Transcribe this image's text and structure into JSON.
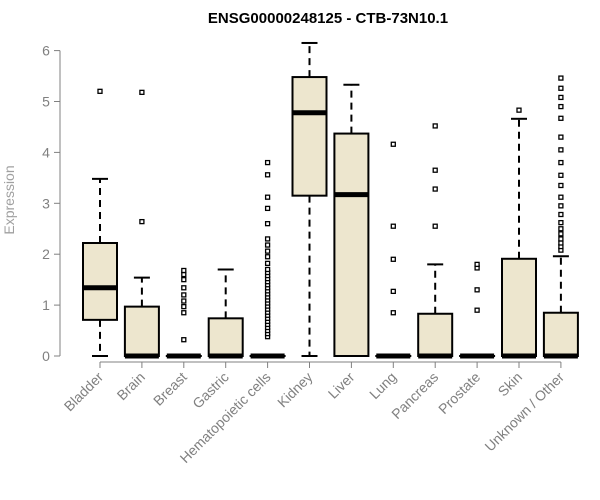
{
  "chart_data": {
    "type": "boxplot",
    "title": "ENSG00000248125 - CTB-73N10.1",
    "xlabel": "",
    "ylabel": "Expression",
    "ylim": [
      0,
      6.2
    ],
    "yticks": [
      0,
      1,
      2,
      3,
      4,
      5,
      6
    ],
    "colors": {
      "box_fill": "#ede6ce",
      "stroke": "#000000",
      "axis": "#808080"
    },
    "categories": [
      "Bladder",
      "Brain",
      "Breast",
      "Gastric",
      "Hematopoietic cells",
      "Kidney",
      "Liver",
      "Lung",
      "Pancreas",
      "Prostate",
      "Skin",
      "Unknown / Other"
    ],
    "boxes": [
      {
        "q1": 0.71,
        "median": 1.34,
        "q3": 2.22,
        "whisker_low": 0,
        "whisker_high": 3.48,
        "outliers": [
          5.2
        ]
      },
      {
        "q1": 0,
        "median": 0,
        "q3": 0.97,
        "whisker_low": 0,
        "whisker_high": 1.54,
        "outliers": [
          2.64,
          5.18
        ]
      },
      {
        "q1": 0,
        "median": 0,
        "q3": 0,
        "whisker_low": 0,
        "whisker_high": 0,
        "outliers": [
          0.32,
          0.85,
          0.97,
          1.08,
          1.2,
          1.34,
          1.5,
          1.6,
          1.68
        ]
      },
      {
        "q1": 0,
        "median": 0,
        "q3": 0.74,
        "whisker_low": 0,
        "whisker_high": 1.7,
        "outliers": []
      },
      {
        "q1": 0,
        "median": 0,
        "q3": 0,
        "whisker_low": 0,
        "whisker_high": 0,
        "outliers": [
          0.38,
          0.44,
          0.5,
          0.56,
          0.62,
          0.68,
          0.74,
          0.8,
          0.86,
          0.92,
          0.98,
          1.04,
          1.1,
          1.16,
          1.22,
          1.28,
          1.34,
          1.4,
          1.46,
          1.52,
          1.58,
          1.64,
          1.7,
          1.82,
          1.95,
          2.06,
          2.18,
          2.3,
          2.6,
          2.9,
          3.12,
          3.56,
          3.8
        ]
      },
      {
        "q1": 3.15,
        "median": 4.78,
        "q3": 5.48,
        "whisker_low": 0,
        "whisker_high": 6.15,
        "outliers": []
      },
      {
        "q1": 0,
        "median": 3.17,
        "q3": 4.37,
        "whisker_low": 0,
        "whisker_high": 5.33,
        "outliers": []
      },
      {
        "q1": 0,
        "median": 0,
        "q3": 0,
        "whisker_low": 0,
        "whisker_high": 0,
        "outliers": [
          0.85,
          1.27,
          1.9,
          2.55,
          4.16
        ]
      },
      {
        "q1": 0,
        "median": 0,
        "q3": 0.83,
        "whisker_low": 0,
        "whisker_high": 1.8,
        "outliers": [
          2.55,
          3.28,
          3.65,
          4.52
        ]
      },
      {
        "q1": 0,
        "median": 0,
        "q3": 0,
        "whisker_low": 0,
        "whisker_high": 0,
        "outliers": [
          0.9,
          1.3,
          1.73,
          1.8
        ]
      },
      {
        "q1": 0,
        "median": 0,
        "q3": 1.91,
        "whisker_low": 0,
        "whisker_high": 4.66,
        "outliers": [
          4.83
        ]
      },
      {
        "q1": 0,
        "median": 0,
        "q3": 0.85,
        "whisker_low": 0,
        "whisker_high": 1.96,
        "outliers": [
          2.08,
          2.15,
          2.22,
          2.3,
          2.4,
          2.5,
          2.62,
          2.78,
          2.95,
          3.12,
          3.35,
          3.55,
          3.8,
          4.05,
          4.3,
          4.67,
          4.9,
          5.08,
          5.26,
          5.46
        ]
      }
    ]
  }
}
